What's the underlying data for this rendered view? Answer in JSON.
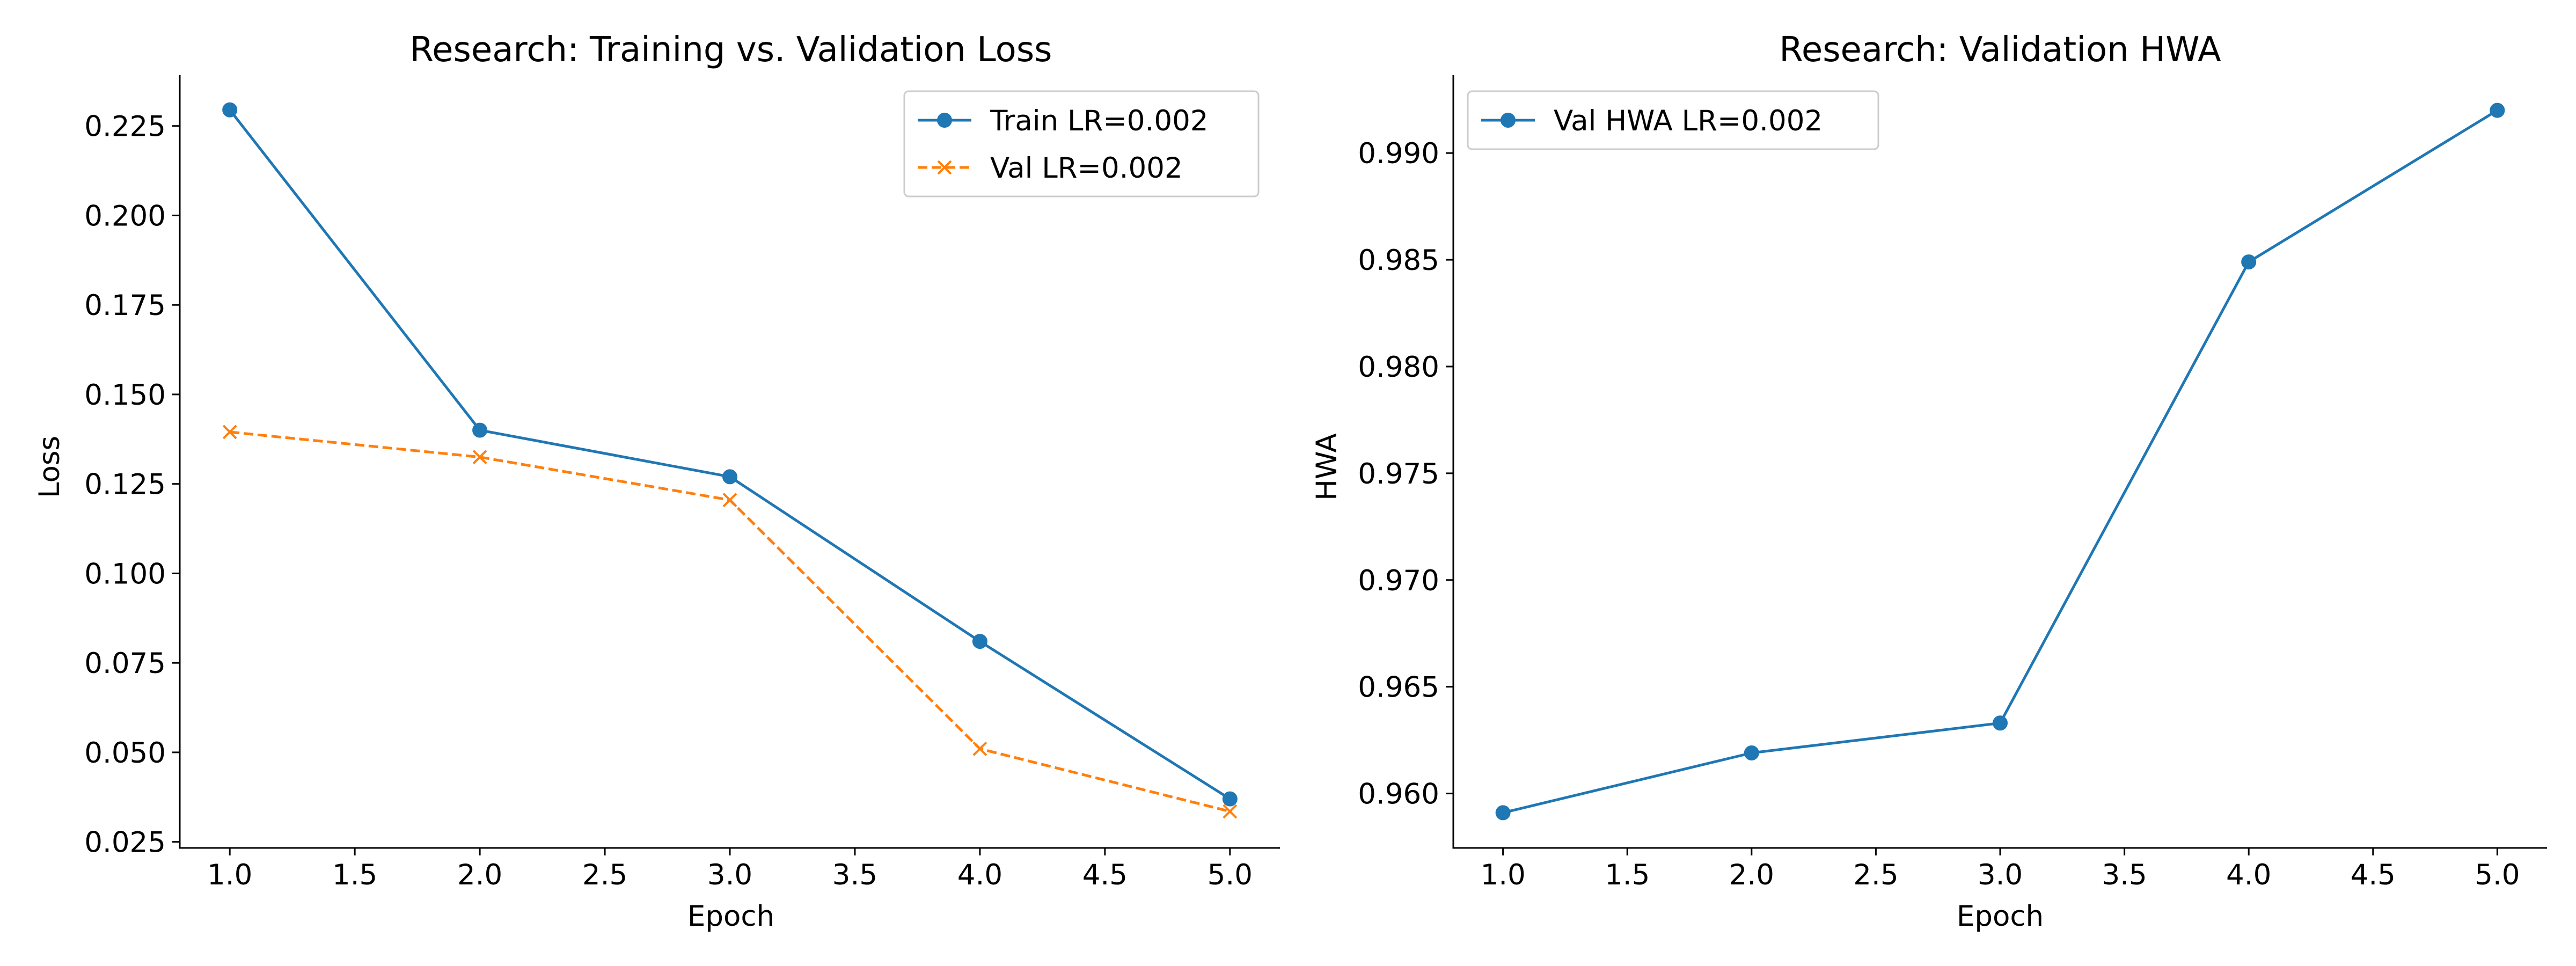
{
  "chart_data": [
    {
      "type": "line",
      "title": "Research: Training vs. Validation Loss",
      "xlabel": "Epoch",
      "ylabel": "Loss",
      "xlim": [
        0.8,
        5.2
      ],
      "ylim": [
        0.0233,
        0.2392
      ],
      "x_ticks": [
        1.0,
        1.5,
        2.0,
        2.5,
        3.0,
        3.5,
        4.0,
        4.5,
        5.0
      ],
      "x_tick_labels": [
        "1.0",
        "1.5",
        "2.0",
        "2.5",
        "3.0",
        "3.5",
        "4.0",
        "4.5",
        "5.0"
      ],
      "y_ticks": [
        0.025,
        0.05,
        0.075,
        0.1,
        0.125,
        0.15,
        0.175,
        0.2,
        0.225
      ],
      "y_tick_labels": [
        "0.025",
        "0.050",
        "0.075",
        "0.100",
        "0.125",
        "0.150",
        "0.175",
        "0.200",
        "0.225"
      ],
      "legend_position": "top-right",
      "grid": false,
      "x": [
        1,
        2,
        3,
        4,
        5
      ],
      "series": [
        {
          "name": "Train LR=0.002",
          "values": [
            0.2295,
            0.14,
            0.127,
            0.081,
            0.037
          ],
          "color": "#1f77b4",
          "marker": "circle",
          "dash": "solid"
        },
        {
          "name": "Val LR=0.002",
          "values": [
            0.1395,
            0.1325,
            0.1205,
            0.051,
            0.0335
          ],
          "color": "#ff7f0e",
          "marker": "x",
          "dash": "dashed"
        }
      ]
    },
    {
      "type": "line",
      "title": "Research: Validation HWA",
      "xlabel": "Epoch",
      "ylabel": "HWA",
      "xlim": [
        0.8,
        5.2
      ],
      "ylim": [
        0.95745,
        0.99365
      ],
      "x_ticks": [
        1.0,
        1.5,
        2.0,
        2.5,
        3.0,
        3.5,
        4.0,
        4.5,
        5.0
      ],
      "x_tick_labels": [
        "1.0",
        "1.5",
        "2.0",
        "2.5",
        "3.0",
        "3.5",
        "4.0",
        "4.5",
        "5.0"
      ],
      "y_ticks": [
        0.96,
        0.965,
        0.97,
        0.975,
        0.98,
        0.985,
        0.99
      ],
      "y_tick_labels": [
        "0.960",
        "0.965",
        "0.970",
        "0.975",
        "0.980",
        "0.985",
        "0.990"
      ],
      "legend_position": "top-left",
      "grid": false,
      "x": [
        1,
        2,
        3,
        4,
        5
      ],
      "series": [
        {
          "name": "Val HWA LR=0.002",
          "values": [
            0.9591,
            0.9619,
            0.9633,
            0.9849,
            0.992
          ],
          "color": "#1f77b4",
          "marker": "circle",
          "dash": "solid"
        }
      ]
    }
  ]
}
